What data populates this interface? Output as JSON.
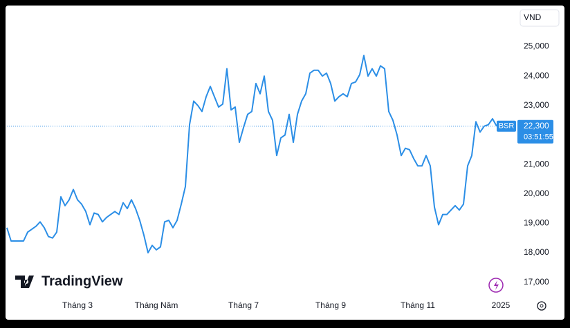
{
  "chart_data": {
    "type": "line",
    "watermark": "TradingView",
    "currency": "VND",
    "symbol": "BSR",
    "last_price": {
      "value": 22300,
      "label": "22,300"
    },
    "countdown": "03:51:55",
    "categories": [
      null,
      null,
      null,
      null,
      null,
      null,
      null,
      null,
      null,
      null,
      null,
      null,
      null,
      null,
      null,
      null,
      null,
      "Tháng 3",
      null,
      null,
      null,
      null,
      null,
      null,
      null,
      null,
      null,
      null,
      null,
      null,
      null,
      null,
      null,
      null,
      null,
      null,
      "Tháng Năm",
      null,
      null,
      null,
      null,
      null,
      null,
      null,
      null,
      null,
      null,
      null,
      null,
      null,
      null,
      null,
      null,
      null,
      null,
      null,
      null,
      "Tháng 7",
      null,
      null,
      null,
      null,
      null,
      null,
      null,
      null,
      null,
      null,
      null,
      null,
      null,
      null,
      null,
      null,
      null,
      null,
      null,
      null,
      "Tháng 9",
      null,
      null,
      null,
      null,
      null,
      null,
      null,
      null,
      null,
      null,
      null,
      null,
      null,
      null,
      null,
      null,
      null,
      null,
      null,
      null,
      "Tháng 11",
      null,
      null,
      null,
      null,
      null,
      null,
      null,
      null,
      null,
      null,
      null,
      null,
      null,
      null,
      null,
      null,
      null,
      null,
      null,
      "2025"
    ],
    "series": [
      {
        "name": "BSR",
        "color": "#2b8ee6",
        "values": [
          18850,
          18400,
          18400,
          18400,
          18400,
          18700,
          18800,
          18900,
          19050,
          18850,
          18550,
          18500,
          18700,
          19900,
          19600,
          19800,
          20150,
          19800,
          19650,
          19400,
          18950,
          19350,
          19300,
          19050,
          19200,
          19300,
          19400,
          19300,
          19700,
          19500,
          19800,
          19500,
          19100,
          18600,
          18000,
          18250,
          18100,
          18200,
          19050,
          19100,
          18850,
          19100,
          19650,
          20250,
          22350,
          23150,
          23000,
          22800,
          23300,
          23650,
          23300,
          22950,
          23050,
          24250,
          22850,
          22950,
          21750,
          22250,
          22700,
          22800,
          23750,
          23400,
          24000,
          22800,
          22500,
          21300,
          21900,
          22000,
          22700,
          21750,
          22700,
          23150,
          23400,
          24100,
          24200,
          24200,
          24000,
          24100,
          23750,
          23150,
          23300,
          23400,
          23300,
          23750,
          23800,
          24050,
          24700,
          24000,
          24250,
          24000,
          24350,
          24250,
          22800,
          22500,
          22000,
          21300,
          21550,
          21500,
          21200,
          20950,
          20950,
          21300,
          20950,
          19550,
          18950,
          19300,
          19300,
          19450,
          19600,
          19450,
          19650,
          20950,
          21300,
          22450,
          22100,
          22300,
          22350,
          22550,
          22300,
          null
        ]
      }
    ],
    "ylim": [
      16500,
      26350
    ],
    "yticks": [
      {
        "value": 17000,
        "label": "17,000"
      },
      {
        "value": 18000,
        "label": "18,000"
      },
      {
        "value": 19000,
        "label": "19,000"
      },
      {
        "value": 20000,
        "label": "20,000"
      },
      {
        "value": 21000,
        "label": "21,000"
      },
      {
        "value": 23000,
        "label": "23,000"
      },
      {
        "value": 24000,
        "label": "24,000"
      },
      {
        "value": 25000,
        "label": "25,000"
      }
    ],
    "grid": false
  }
}
